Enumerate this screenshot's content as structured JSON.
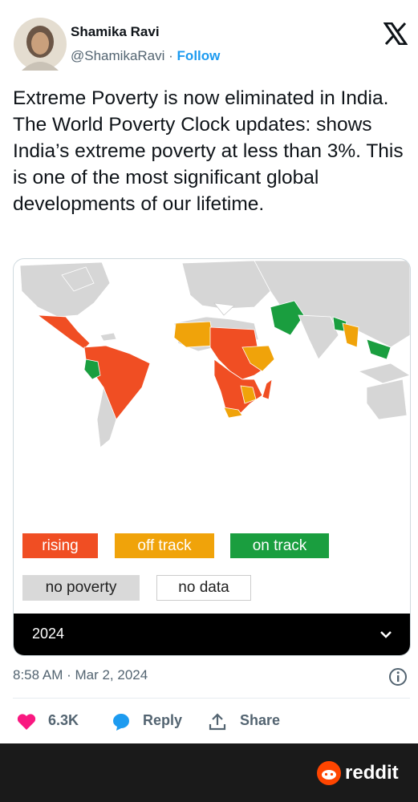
{
  "author": {
    "name": "Shamika Ravi",
    "handle": "@ShamikaRavi",
    "separator": "·",
    "follow": "Follow"
  },
  "tweet": {
    "text": "Extreme Poverty is now eliminated in India. The World Poverty Clock updates: shows India’s extreme poverty at less than 3%. This is one of the most significant global developments of our lifetime."
  },
  "map": {
    "legend": [
      "rising",
      "off track",
      "on track",
      "no poverty",
      "no data"
    ],
    "year": "2024"
  },
  "timestamp": "8:58 AM · Mar 2, 2024",
  "actions": {
    "likes": "6.3K",
    "reply": "Reply",
    "share": "Share"
  },
  "watermark": "reddit"
}
